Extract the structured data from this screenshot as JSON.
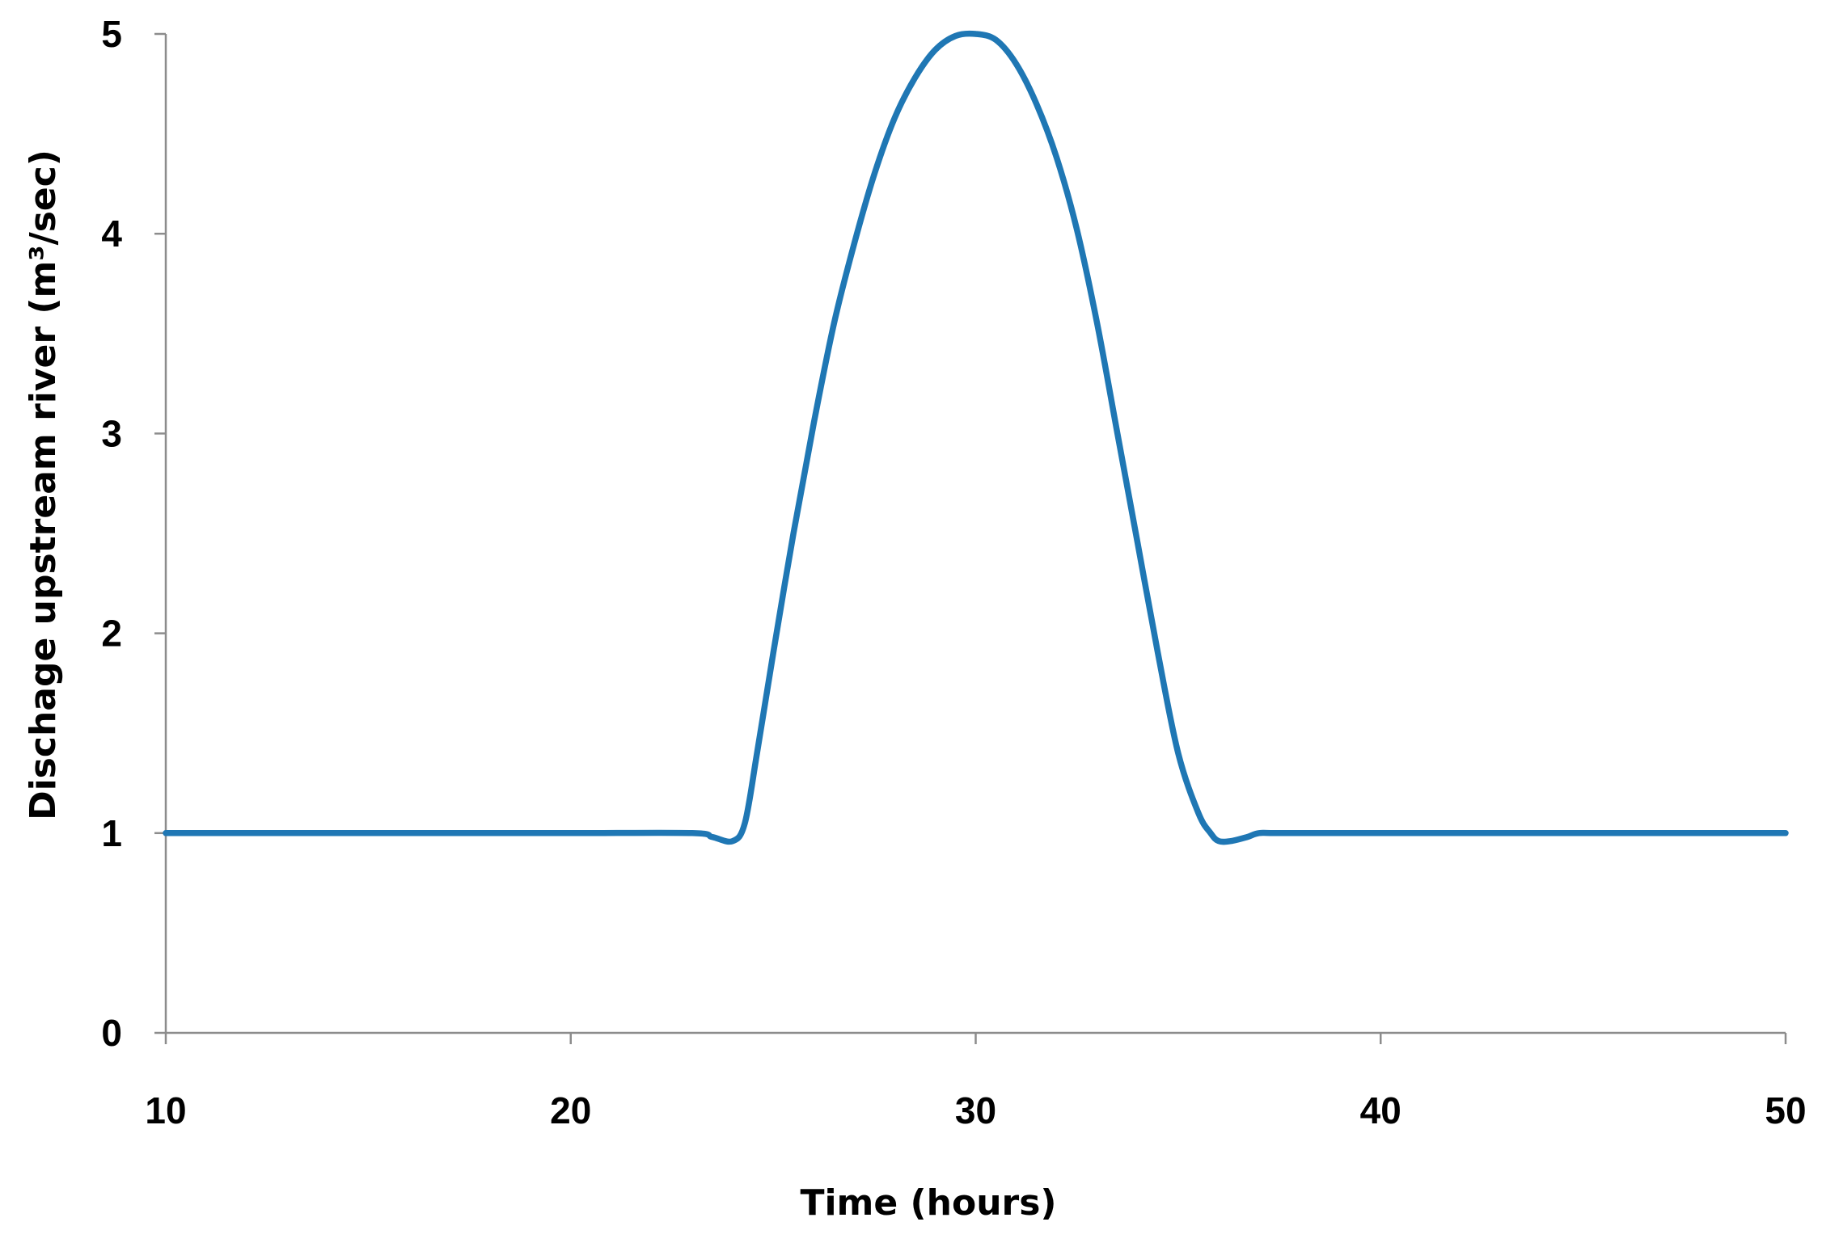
{
  "chart_data": {
    "type": "line",
    "title": "",
    "xlabel": "Time (hours)",
    "ylabel": "Dischage upstream river (m³/sec)",
    "xlim": [
      10,
      50
    ],
    "ylim": [
      0,
      5
    ],
    "xticks": [
      10,
      20,
      30,
      40,
      50
    ],
    "yticks": [
      0,
      1,
      2,
      3,
      4,
      5
    ],
    "grid": false,
    "legend": "none",
    "colors": {
      "series": "#1f77b4",
      "axis": "#8c8c8c",
      "text": "#000000"
    },
    "series": [
      {
        "color": "#1f77b4",
        "x": [
          10,
          15,
          20,
          23,
          23.5,
          24,
          24.3,
          24.6,
          25,
          25.5,
          26,
          26.5,
          27,
          27.5,
          28,
          28.5,
          29,
          29.5,
          30,
          30.5,
          31,
          31.5,
          32,
          32.5,
          33,
          33.5,
          34,
          34.5,
          35,
          35.5,
          35.8,
          36,
          36.3,
          36.7,
          37,
          37.5,
          40,
          45,
          50
        ],
        "y": [
          1.0,
          1.0,
          1.0,
          1.0,
          0.98,
          0.96,
          1.05,
          1.4,
          1.9,
          2.5,
          3.05,
          3.55,
          3.95,
          4.3,
          4.58,
          4.78,
          4.92,
          4.99,
          5.0,
          4.97,
          4.85,
          4.65,
          4.38,
          4.02,
          3.55,
          3.0,
          2.45,
          1.9,
          1.4,
          1.1,
          1.0,
          0.96,
          0.96,
          0.98,
          1.0,
          1.0,
          1.0,
          1.0,
          1.0
        ]
      }
    ]
  }
}
